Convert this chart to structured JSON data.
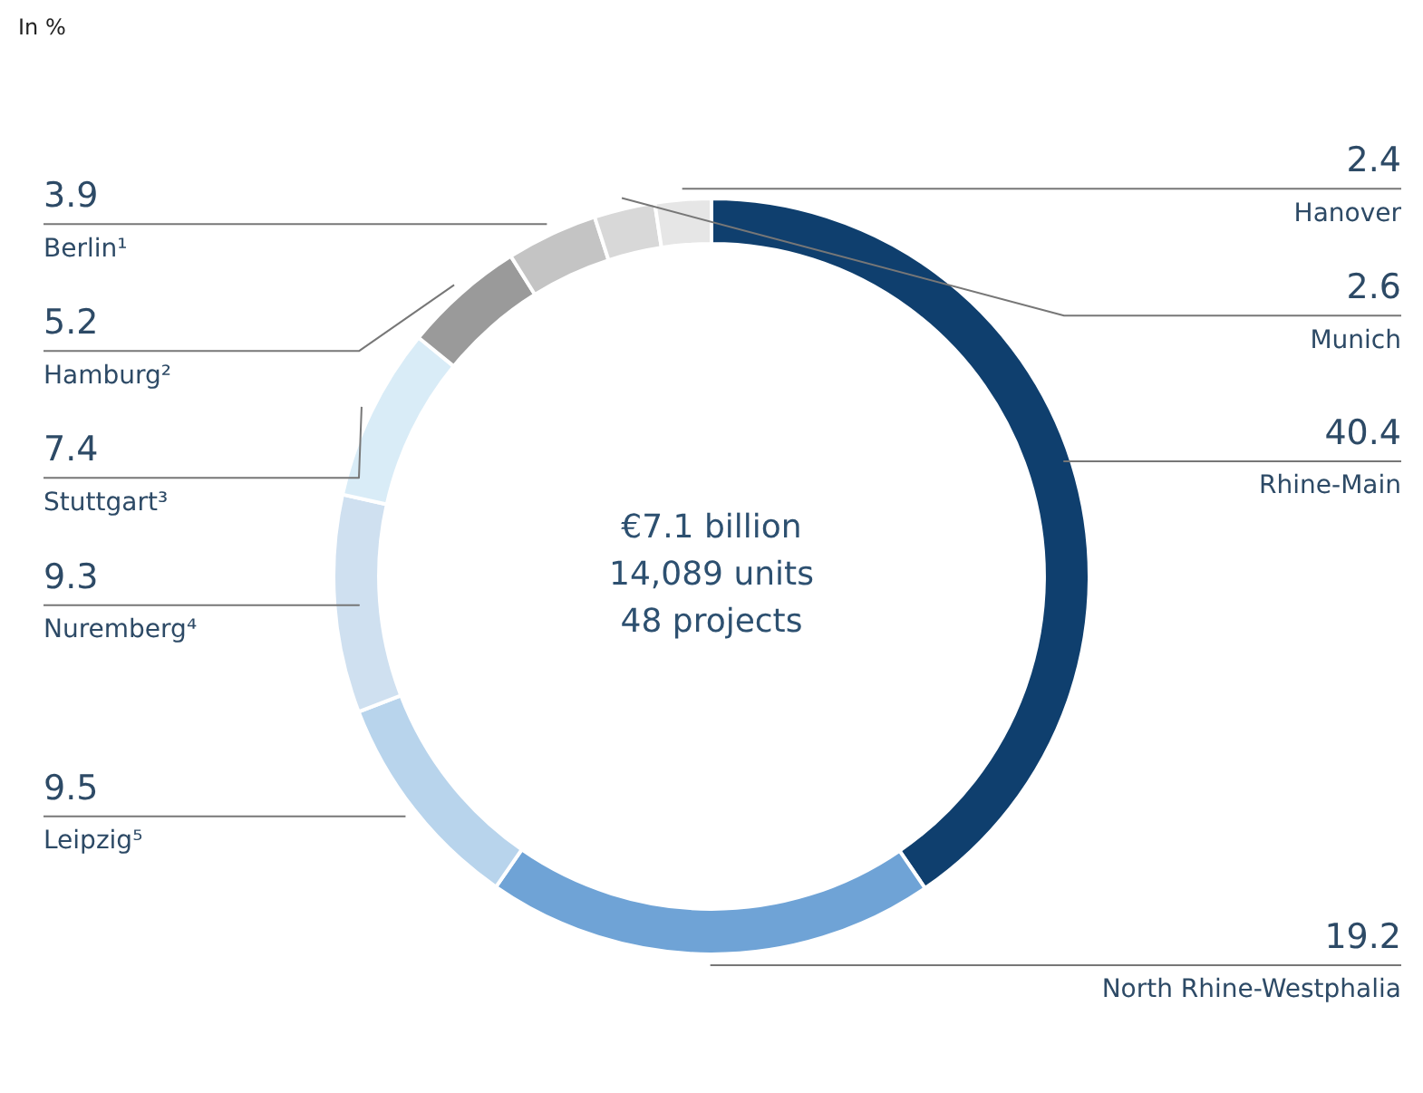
{
  "chart_data": {
    "type": "donut",
    "title": "In %",
    "categories": [
      "Rhine-Main",
      "North Rhine-Westphalia",
      "Leipzig⁵",
      "Nuremberg⁴",
      "Stuttgart³",
      "Hamburg²",
      "Berlin¹",
      "Munich",
      "Hanover"
    ],
    "values": [
      40.4,
      19.2,
      9.5,
      9.3,
      7.4,
      5.2,
      3.9,
      2.6,
      2.4
    ],
    "colors": [
      "#0f3f6e",
      "#6fa3d6",
      "#b8d4ec",
      "#cfe0f0",
      "#d9ecf7",
      "#9a9a9a",
      "#c4c4c4",
      "#d8d8d8",
      "#e6e6e6"
    ],
    "data_labels": true,
    "legend": false,
    "annotations": [
      "€7.1 billion",
      "14,089 units",
      "48 projects"
    ]
  }
}
